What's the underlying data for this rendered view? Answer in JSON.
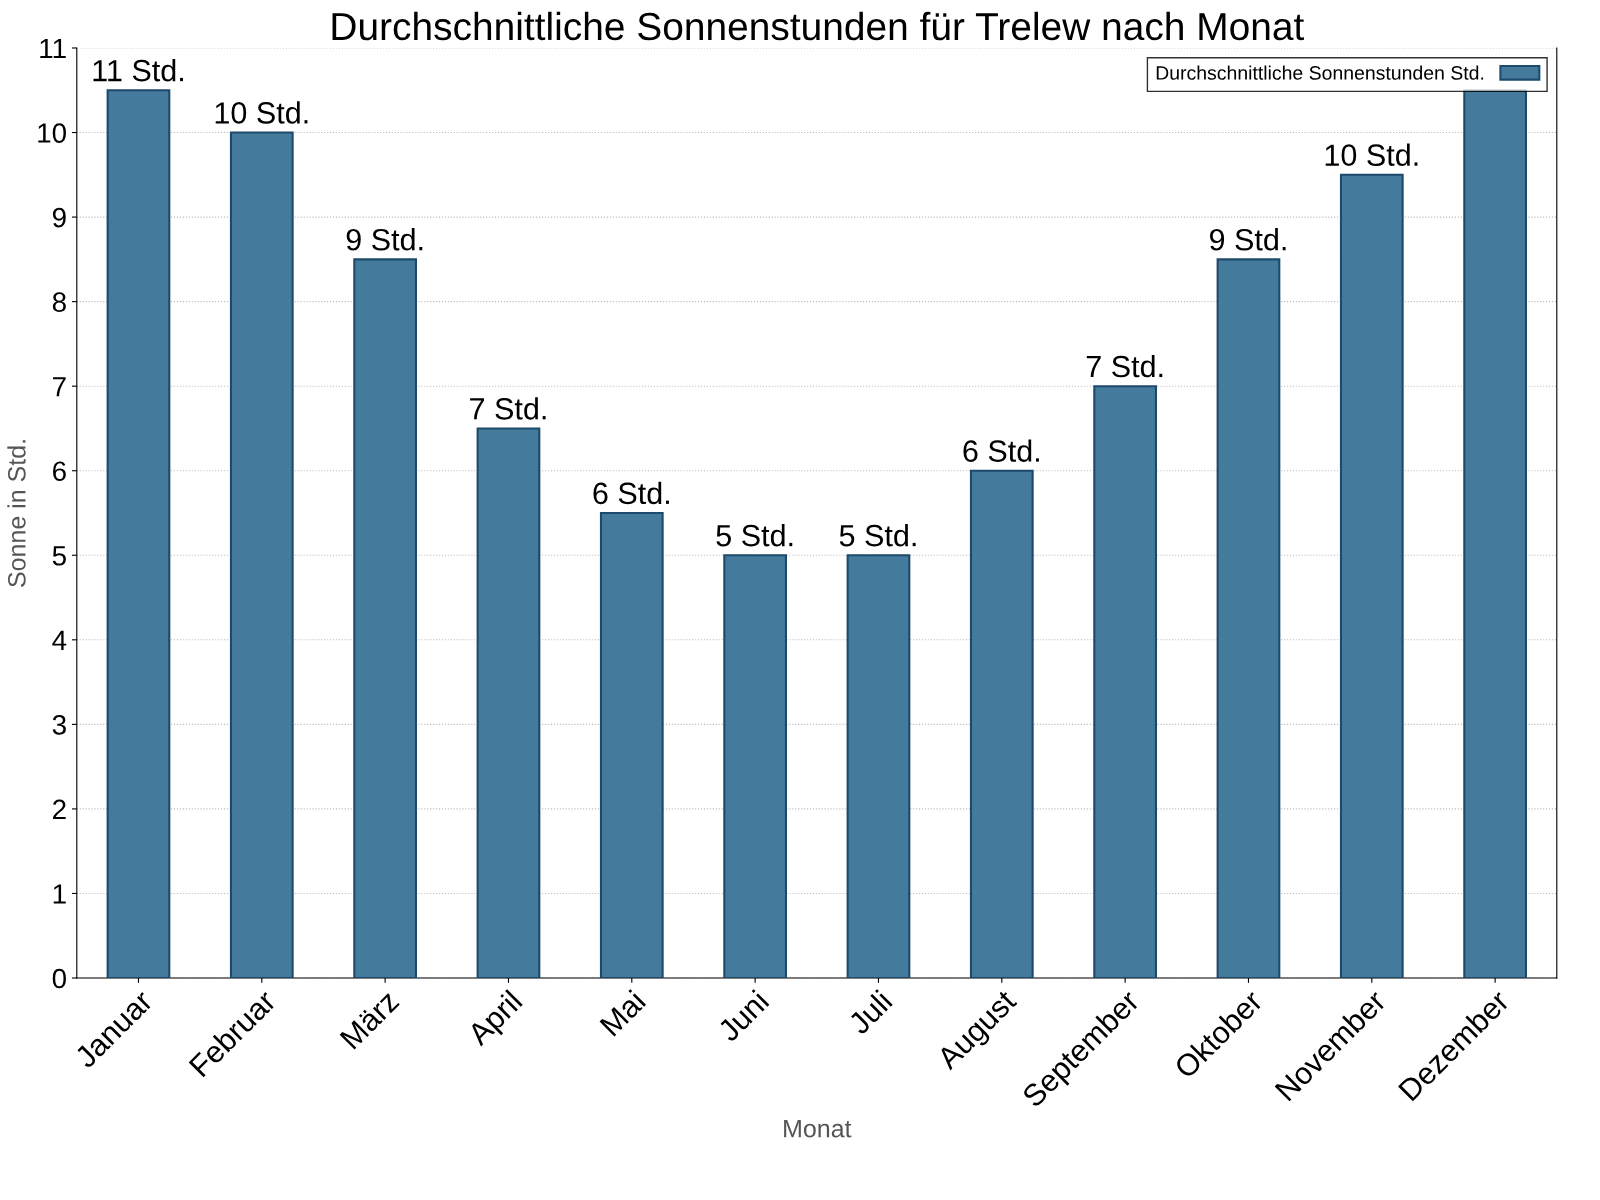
{
  "chart_data": {
    "type": "bar",
    "title": "Durchschnittliche Sonnenstunden für Trelew nach Monat",
    "xlabel": "Monat",
    "ylabel": "Sonne in Std.",
    "categories": [
      "Januar",
      "Februar",
      "März",
      "April",
      "Mai",
      "Juni",
      "Juli",
      "August",
      "September",
      "Oktober",
      "November",
      "Dezember"
    ],
    "series": [
      {
        "name": "Durchschnittliche Sonnenstunden Std.",
        "color": "#447a9c",
        "values": [
          10.5,
          10,
          8.5,
          6.5,
          5.5,
          5,
          5,
          6,
          7,
          8.5,
          9.5,
          10.5
        ],
        "value_labels": [
          "11 Std.",
          "10 Std.",
          "9 Std.",
          "7 Std.",
          "6 Std.",
          "5 Std.",
          "5 Std.",
          "6 Std.",
          "7 Std.",
          "9 Std.",
          "10 Std.",
          null
        ]
      }
    ],
    "ylim": [
      0,
      11
    ],
    "yticks": [
      0,
      1,
      2,
      3,
      4,
      5,
      6,
      7,
      8,
      9,
      10,
      11
    ],
    "grid": "y",
    "legend": "top right"
  }
}
